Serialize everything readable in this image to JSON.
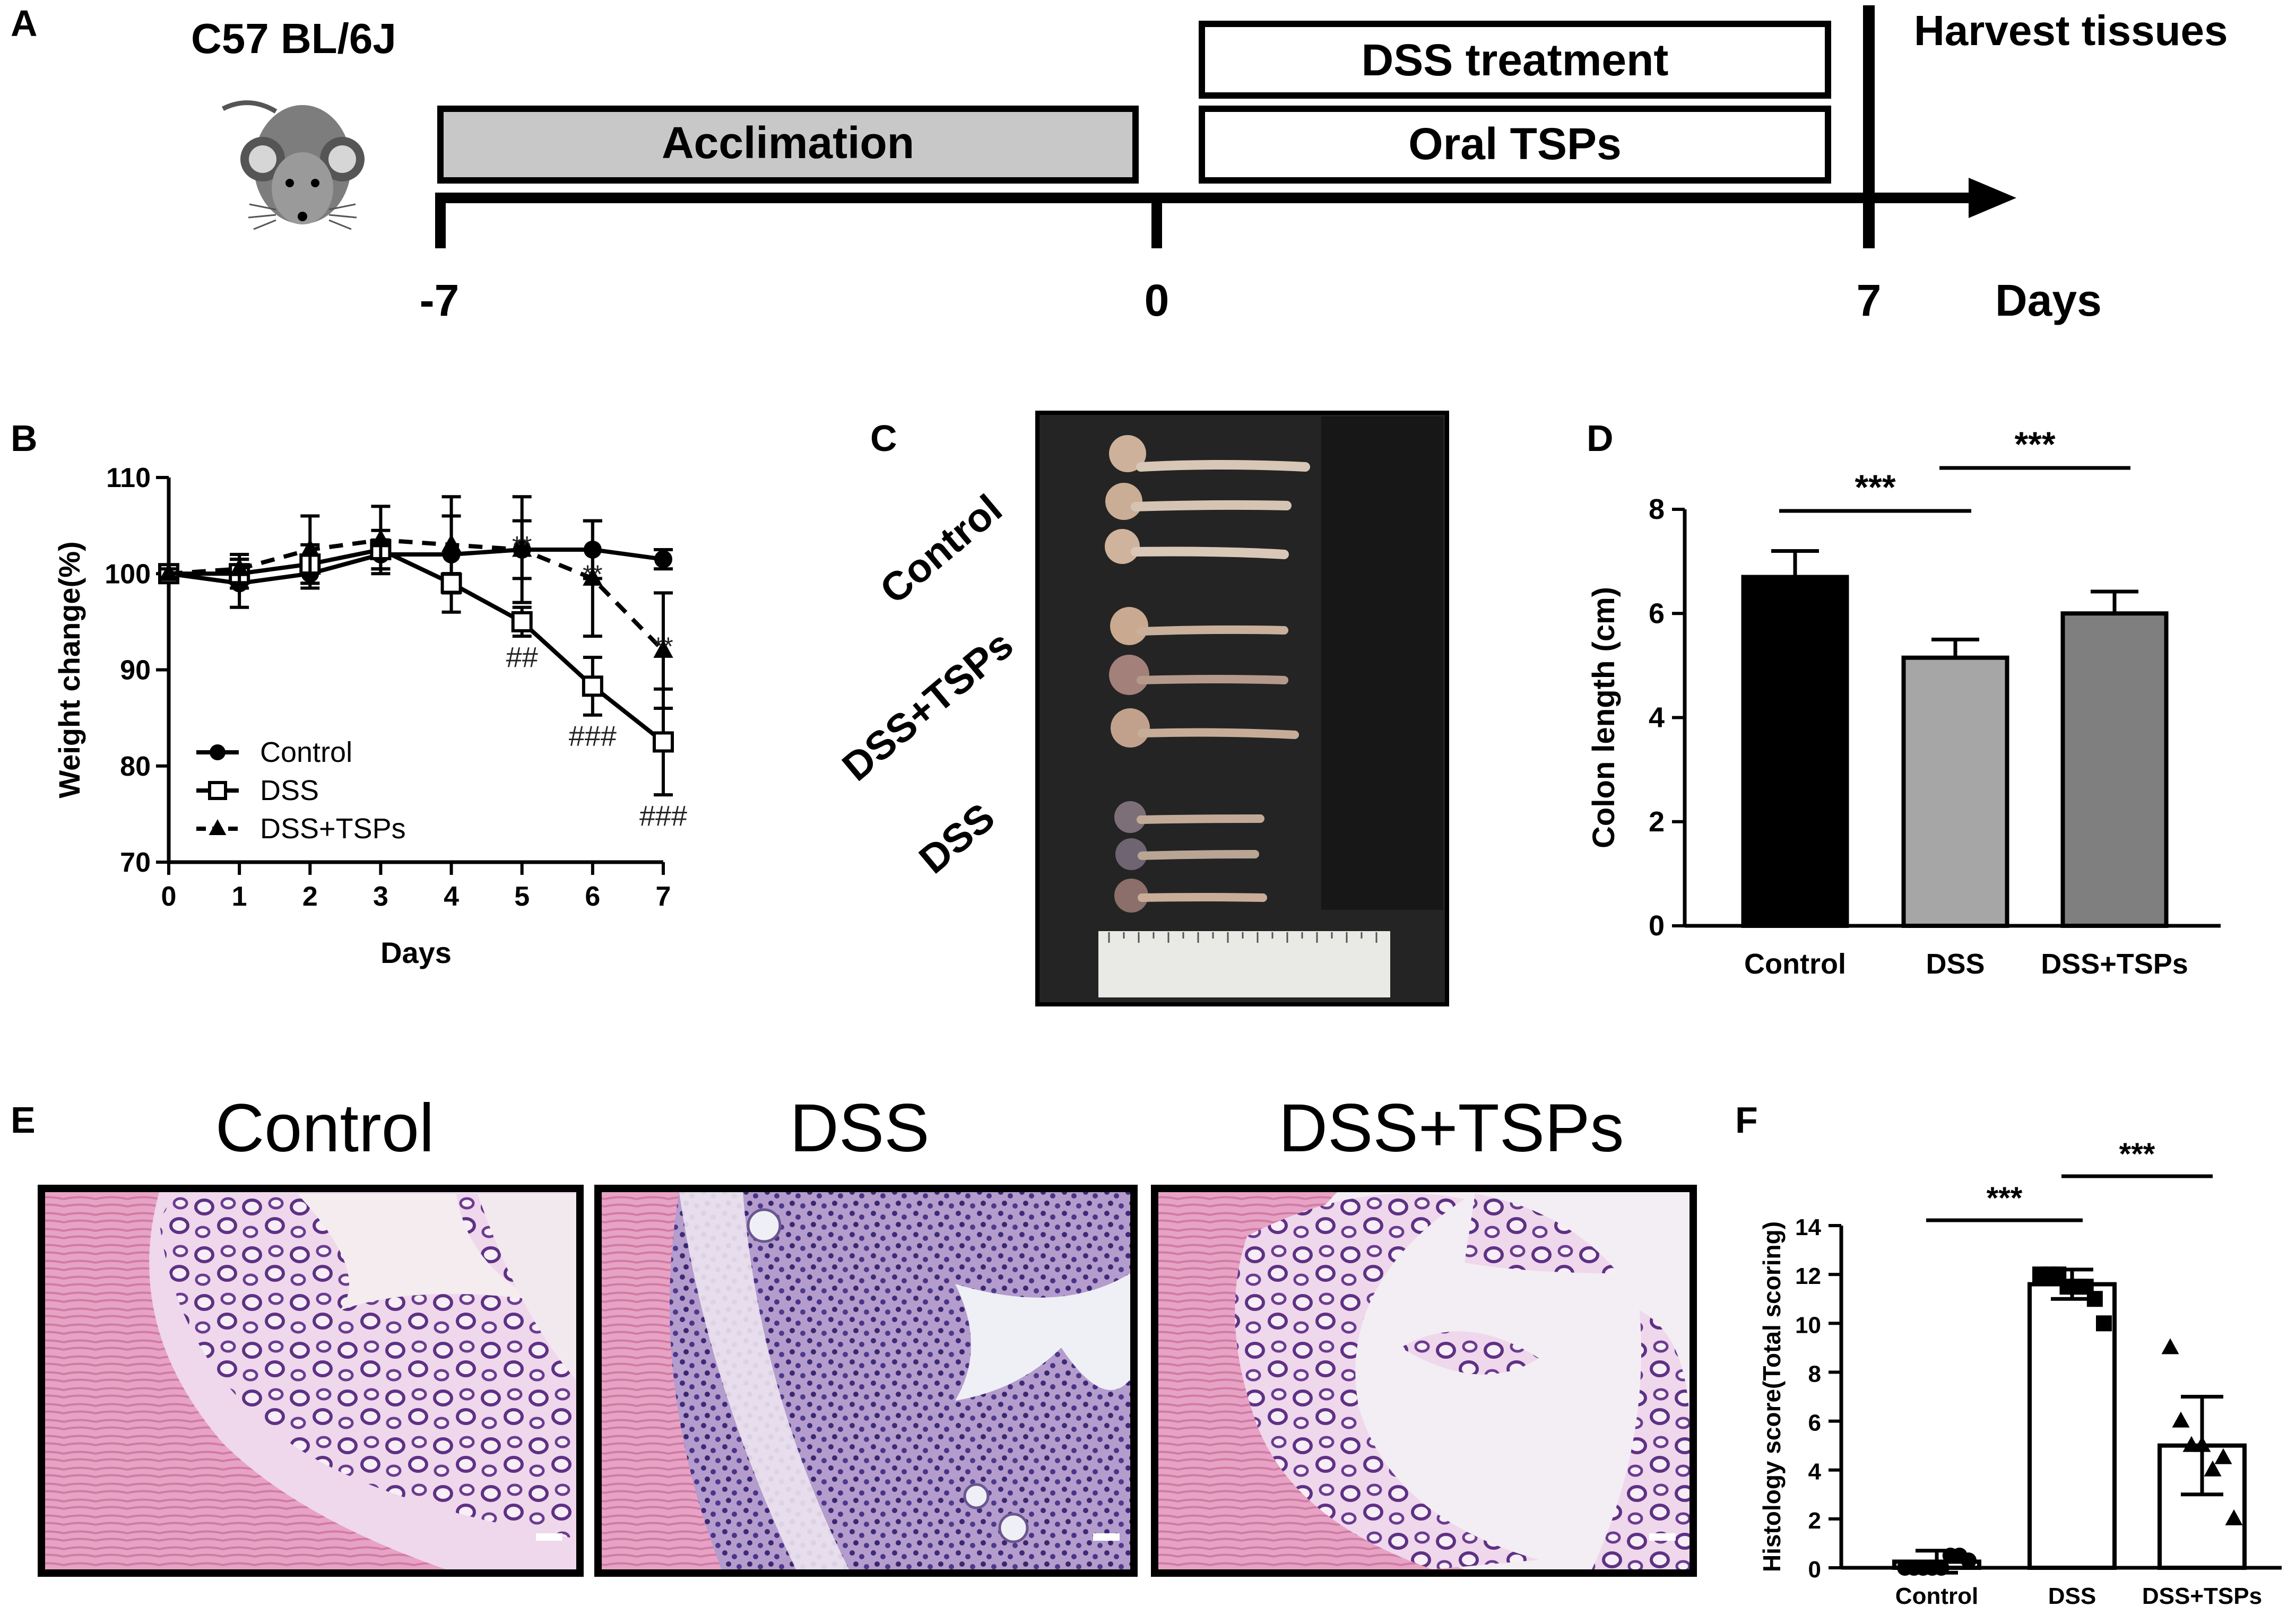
{
  "panels": {
    "A": {
      "letter": "A",
      "strain": "C57 BL/6J",
      "acclimation": "Acclimation",
      "dss_treatment": "DSS treatment",
      "oral_tsps": "Oral TSPs",
      "harvest": "Harvest tissues",
      "ticks": [
        "-7",
        "0",
        "7"
      ],
      "axis_unit": "Days"
    },
    "B": {
      "letter": "B"
    },
    "C": {
      "letter": "C",
      "row_labels": [
        "Control",
        "DSS+TSPs",
        "DSS"
      ]
    },
    "D": {
      "letter": "D"
    },
    "E": {
      "letter": "E",
      "titles": [
        "Control",
        "DSS",
        "DSS+TSPs"
      ]
    },
    "F": {
      "letter": "F"
    }
  },
  "colors": {
    "acclimation_fill": "#c8c8c8",
    "bar_control": "#000000",
    "bar_dss": "#a6a6a6",
    "bar_dss_tsps": "#7f7f7f",
    "tissue_bg": "#e8a9c8",
    "tissue_purple": "#6a3d8a"
  },
  "chart_data": [
    {
      "id": "B",
      "type": "line",
      "xlabel": "Days",
      "ylabel": "Weight change(%)",
      "xlim": [
        0,
        7
      ],
      "ylim": [
        70,
        110
      ],
      "x": [
        0,
        1,
        2,
        3,
        4,
        5,
        6,
        7
      ],
      "xticks": [
        "0",
        "1",
        "2",
        "3",
        "4",
        "5",
        "6",
        "7"
      ],
      "yticks": [
        "70",
        "80",
        "90",
        "100",
        "110"
      ],
      "legend_position": "bottom-left",
      "series": [
        {
          "name": "Control",
          "marker": "filled-circle",
          "line": "solid",
          "values": [
            100,
            99,
            100,
            102,
            102,
            102.5,
            102.5,
            101.5
          ],
          "errors": [
            0.5,
            2.5,
            1.5,
            1.5,
            6,
            5.5,
            3,
            1
          ]
        },
        {
          "name": "DSS",
          "marker": "open-square",
          "line": "solid",
          "values": [
            100,
            100,
            101,
            102.5,
            99,
            95,
            88.3,
            82.5
          ],
          "errors": [
            0.5,
            1.5,
            2,
            2,
            1,
            1.5,
            3,
            5.5
          ]
        },
        {
          "name": "DSS+TSPs",
          "marker": "filled-triangle",
          "line": "dashed",
          "values": [
            100,
            100.5,
            102.5,
            103.5,
            103,
            102.5,
            99.5,
            92
          ],
          "errors": [
            0.5,
            1.5,
            3.5,
            3.5,
            3,
            3,
            6,
            6
          ]
        }
      ],
      "annotations": [
        {
          "x": 5,
          "text": "##",
          "series": "DSS"
        },
        {
          "x": 6,
          "text": "###",
          "series": "DSS"
        },
        {
          "x": 7,
          "text": "###",
          "series": "DSS"
        },
        {
          "x": 5,
          "text": "**",
          "series": "DSS+TSPs"
        },
        {
          "x": 6,
          "text": "**",
          "series": "DSS+TSPs"
        },
        {
          "x": 7,
          "text": "**",
          "series": "DSS+TSPs"
        }
      ]
    },
    {
      "id": "D",
      "type": "bar",
      "ylabel": "Colon length (cm)",
      "ylim": [
        0,
        8
      ],
      "yticks": [
        "0",
        "2",
        "4",
        "6",
        "8"
      ],
      "categories": [
        "Control",
        "DSS",
        "DSS+TSPs"
      ],
      "values": [
        6.7,
        5.15,
        6.0
      ],
      "errors": [
        0.5,
        0.35,
        0.42
      ],
      "significance": [
        {
          "from": 0,
          "to": 1,
          "text": "***"
        },
        {
          "from": 1,
          "to": 2,
          "text": "***"
        }
      ]
    },
    {
      "id": "F",
      "type": "bar",
      "ylabel": "Histology score(Total scoring)",
      "ylim": [
        0,
        14
      ],
      "yticks": [
        "0",
        "2",
        "4",
        "6",
        "8",
        "10",
        "12",
        "14"
      ],
      "categories": [
        "Control",
        "DSS",
        "DSS+TSPs"
      ],
      "values": [
        0.25,
        11.6,
        5.0
      ],
      "errors": [
        0.45,
        0.6,
        2.0
      ],
      "points": [
        [
          0,
          0,
          0,
          0,
          0,
          0.5,
          0.5,
          0.3
        ],
        [
          12,
          12,
          12,
          11.5,
          11.5,
          11.5,
          11,
          10
        ],
        [
          9,
          6,
          5,
          5,
          4,
          4.5,
          2
        ]
      ],
      "markers": [
        "filled-circle",
        "filled-square",
        "filled-triangle"
      ],
      "significance": [
        {
          "from": 0,
          "to": 1,
          "text": "***"
        },
        {
          "from": 1,
          "to": 2,
          "text": "***"
        }
      ]
    }
  ]
}
